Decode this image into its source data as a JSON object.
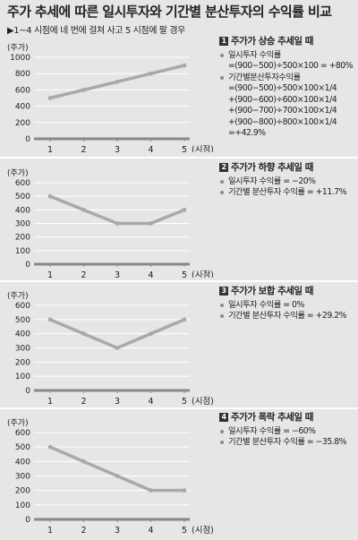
{
  "title": "주가 추세에 따른 일시투자와 기간별 분산투자의 수익률 비교",
  "subtitle": "▶1~4 시점에 네 번에 걸쳐 사고 5 시점에 팔 경우",
  "chart_data": [
    {
      "type": "line",
      "ylabel": "(주가)",
      "xlabel": "(시점)",
      "x": [
        1,
        2,
        3,
        4,
        5
      ],
      "ylim": [
        0,
        1000
      ],
      "yticks": [
        0,
        200,
        400,
        600,
        800,
        1000
      ],
      "series": [
        {
          "values": [
            500,
            600,
            700,
            800,
            900
          ]
        }
      ],
      "note": {
        "number": "1",
        "heading": "주가가 상승 추세일 때",
        "lines": [
          {
            "text": "일시투자 수익률",
            "bullet": true
          },
          {
            "text": "=(900−500)÷500×100 = +80%",
            "bullet": false
          },
          {
            "text": "기간별분산투자수익률",
            "bullet": true
          },
          {
            "text": "=(900−500)÷500×100×1/4",
            "bullet": false
          },
          {
            "text": "+(900−600)÷600×100×1/4",
            "bullet": false
          },
          {
            "text": "+(900−700)÷700×100×1/4",
            "bullet": false
          },
          {
            "text": "+(900−800)÷800×100×1/4",
            "bullet": false
          },
          {
            "text": "=+42.9%",
            "bullet": false
          }
        ]
      }
    },
    {
      "type": "line",
      "ylabel": "(주가)",
      "xlabel": "(시점)",
      "x": [
        1,
        2,
        3,
        4,
        5
      ],
      "ylim": [
        0,
        600
      ],
      "yticks": [
        0,
        100,
        200,
        300,
        400,
        500,
        600
      ],
      "series": [
        {
          "values": [
            500,
            400,
            300,
            300,
            400
          ]
        }
      ],
      "note": {
        "number": "2",
        "heading": "주가가 하향 추세일 때",
        "lines": [
          {
            "text": "일시투자 수익률 = −20%",
            "bullet": true
          },
          {
            "text": "기간별 분산투자 수익률 = +11.7%",
            "bullet": true
          }
        ]
      }
    },
    {
      "type": "line",
      "ylabel": "(주가)",
      "xlabel": "(시점)",
      "x": [
        1,
        2,
        3,
        4,
        5
      ],
      "ylim": [
        0,
        600
      ],
      "yticks": [
        0,
        100,
        200,
        300,
        400,
        500,
        600
      ],
      "series": [
        {
          "values": [
            500,
            400,
            300,
            400,
            500
          ]
        }
      ],
      "note": {
        "number": "3",
        "heading": "주가가 보합 추세일 때",
        "lines": [
          {
            "text": "일시투자 수익률 = 0%",
            "bullet": true
          },
          {
            "text": "기간별 분산투자 수익률 = +29.2%",
            "bullet": true
          }
        ]
      }
    },
    {
      "type": "line",
      "ylabel": "(주가)",
      "xlabel": "(시점)",
      "x": [
        1,
        2,
        3,
        4,
        5
      ],
      "ylim": [
        0,
        600
      ],
      "yticks": [
        0,
        100,
        200,
        300,
        400,
        500,
        600
      ],
      "series": [
        {
          "values": [
            500,
            400,
            300,
            200,
            200
          ]
        }
      ],
      "note": {
        "number": "4",
        "heading": "주가가 폭락 추세일 때",
        "lines": [
          {
            "text": "일시투자 수익률 = −60%",
            "bullet": true
          },
          {
            "text": "기간별 분산투자 수익률 = −35.8%",
            "bullet": true
          }
        ]
      }
    }
  ],
  "colors": {
    "line": "#a9a9a9",
    "grid": "#ffffff",
    "axis": "#888888",
    "background": "#e6e6e6"
  }
}
